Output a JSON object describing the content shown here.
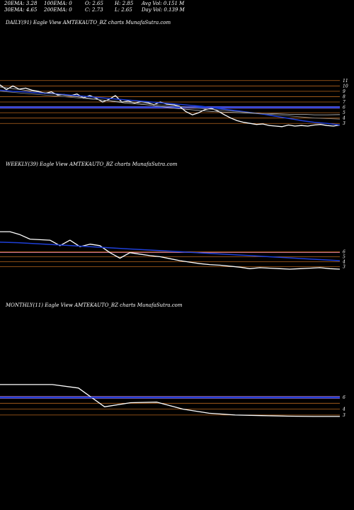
{
  "header": {
    "ema20": "20EMA: 3.28",
    "ema100": "100EMA: 0",
    "open": "O: 2.65",
    "high": "H: 2.85",
    "avgvol": "Avg Vol: 0.151 M",
    "ema30": "30EMA: 4.65",
    "ema200": "200EMA: 0",
    "close": "C: 2.73",
    "low": "L: 2.65",
    "dayvol": "Day Vol: 0.139 M"
  },
  "colors": {
    "background": "#000000",
    "price": "#ffffff",
    "ema_blue": "#1e3fd8",
    "grid_orange": "#b5651d",
    "pink": "#ff8fb8",
    "grey": "#8a8a8a"
  },
  "chart_data": [
    {
      "type": "line",
      "title": "DAILY(91) Eagle  View  AMTEKAUTO_BZ charts MunafaSutra.com",
      "yticks": [
        11,
        10,
        9,
        8,
        7,
        6,
        5,
        4,
        3
      ],
      "ylim": [
        2.5,
        11.5
      ],
      "series": [
        {
          "kind": "price",
          "color": "#ffffff",
          "values": [
            10.2,
            9.3,
            10.0,
            9.4,
            9.6,
            9.2,
            9.0,
            8.6,
            8.9,
            8.3,
            8.4,
            8.2,
            8.5,
            7.8,
            8.2,
            7.7,
            7.0,
            7.5,
            8.2,
            7.0,
            7.2,
            6.8,
            7.1,
            6.9,
            6.5,
            7.0,
            6.6,
            6.5,
            6.2,
            5.2,
            4.6,
            5.0,
            5.6,
            5.8,
            5.3,
            4.6,
            4.0,
            3.5,
            3.2,
            3.0,
            2.8,
            2.9,
            2.6,
            2.5,
            2.4,
            2.7,
            2.5,
            2.6,
            2.5,
            2.7,
            2.8,
            2.6,
            2.5,
            2.7
          ]
        },
        {
          "kind": "ema",
          "color": "#1e3fd8",
          "values": [
            9.2,
            9.0,
            8.9,
            8.7,
            8.6,
            8.4,
            8.2,
            8.0,
            7.8,
            7.6,
            7.4,
            7.2,
            7.0,
            6.8,
            6.6,
            6.4,
            6.2,
            5.9,
            5.6,
            5.3,
            5.0,
            4.7,
            4.3,
            3.9,
            3.5,
            3.2,
            3.0,
            2.7
          ]
        },
        {
          "kind": "ema",
          "color": "#c8c8c8",
          "values": [
            9.8,
            9.5,
            9.2,
            8.9,
            8.6,
            8.3,
            8.0,
            7.7,
            7.4,
            7.1,
            6.8,
            6.6,
            6.4,
            6.1,
            5.8,
            5.6,
            5.4,
            5.2,
            5.1,
            5.0,
            4.9,
            4.8,
            4.8,
            4.7,
            4.7,
            4.6,
            4.6,
            4.65
          ]
        },
        {
          "kind": "ema",
          "color": "#8a8a8a",
          "values": [
            9.0,
            8.8,
            8.6,
            8.4,
            8.2,
            8.0,
            7.8,
            7.6,
            7.4,
            7.2,
            7.0,
            6.8,
            6.6,
            6.4,
            6.2,
            6.0,
            5.8,
            5.6,
            5.4,
            5.2,
            5.0,
            4.8,
            4.6,
            4.4,
            4.2,
            4.0,
            3.9,
            3.8
          ]
        }
      ],
      "hlines": [
        {
          "value": 11,
          "color": "#b5651d"
        },
        {
          "value": 10,
          "color": "#b5651d"
        },
        {
          "value": 9,
          "color": "#b5651d"
        },
        {
          "value": 8,
          "color": "#b5651d"
        },
        {
          "value": 7,
          "color": "#b5651d"
        },
        {
          "value": 6.15,
          "color": "#ff8fb8"
        },
        {
          "value": 5.85,
          "color": "#ff8fb8"
        },
        {
          "value": 6,
          "color": "#1e3fd8"
        },
        {
          "value": 5,
          "color": "#b5651d"
        },
        {
          "value": 4,
          "color": "#b5651d"
        },
        {
          "value": 3,
          "color": "#b5651d"
        }
      ]
    },
    {
      "type": "line",
      "title": "WEEKLY(39) Eagle  View  AMTEKAUTO_BZ charts MunafaSutra.com",
      "yticks": [
        6,
        5,
        4,
        3
      ],
      "ylim": [
        2.5,
        11
      ],
      "series": [
        {
          "kind": "price",
          "color": "#ffffff",
          "values": [
            10.0,
            10.0,
            9.4,
            8.5,
            8.4,
            8.3,
            7.2,
            8.3,
            7.0,
            7.5,
            7.2,
            5.8,
            4.7,
            5.8,
            5.5,
            5.2,
            5.0,
            4.6,
            4.2,
            3.9,
            3.6,
            3.4,
            3.3,
            3.1,
            2.9,
            2.6,
            2.8,
            2.7,
            2.6,
            2.5,
            2.6,
            2.7,
            2.8,
            2.6,
            2.5
          ]
        },
        {
          "kind": "ema",
          "color": "#1e3fd8",
          "values": [
            7.9,
            7.8,
            7.6,
            7.4,
            7.2,
            7.0,
            6.8,
            6.6,
            6.4,
            6.2,
            6.0,
            5.8,
            5.6,
            5.4,
            5.2,
            5.0,
            4.8,
            4.6,
            4.4,
            4.2
          ]
        }
      ],
      "hlines": [
        {
          "value": 6,
          "color": "#b5651d"
        },
        {
          "value": 5.85,
          "color": "#ff8fb8"
        },
        {
          "value": 5,
          "color": "#b5651d"
        },
        {
          "value": 4,
          "color": "#b5651d"
        },
        {
          "value": 3,
          "color": "#b5651d"
        }
      ]
    },
    {
      "type": "line",
      "title": "MONTHLY(11) Eagle  View  AMTEKAUTO_BZ charts MunafaSutra.com",
      "yticks": [
        6,
        4,
        3
      ],
      "ylim": [
        2.5,
        10
      ],
      "series": [
        {
          "kind": "price",
          "color": "#ffffff",
          "values": [
            8.2,
            8.2,
            8.2,
            7.6,
            4.4,
            5.1,
            5.2,
            4.0,
            3.3,
            3.0,
            2.9,
            2.8,
            2.75,
            2.75
          ]
        },
        {
          "kind": "ema",
          "color": "#1e3fd8",
          "values": [
            6.0,
            6.0
          ]
        }
      ],
      "hlines": [
        {
          "value": 6.15,
          "color": "#ff8fb8"
        },
        {
          "value": 5.85,
          "color": "#ff8fb8"
        },
        {
          "value": 6,
          "color": "#1e3fd8"
        },
        {
          "value": 5,
          "color": "#b5651d"
        },
        {
          "value": 4,
          "color": "#b5651d"
        },
        {
          "value": 3,
          "color": "#b5651d"
        }
      ]
    }
  ]
}
